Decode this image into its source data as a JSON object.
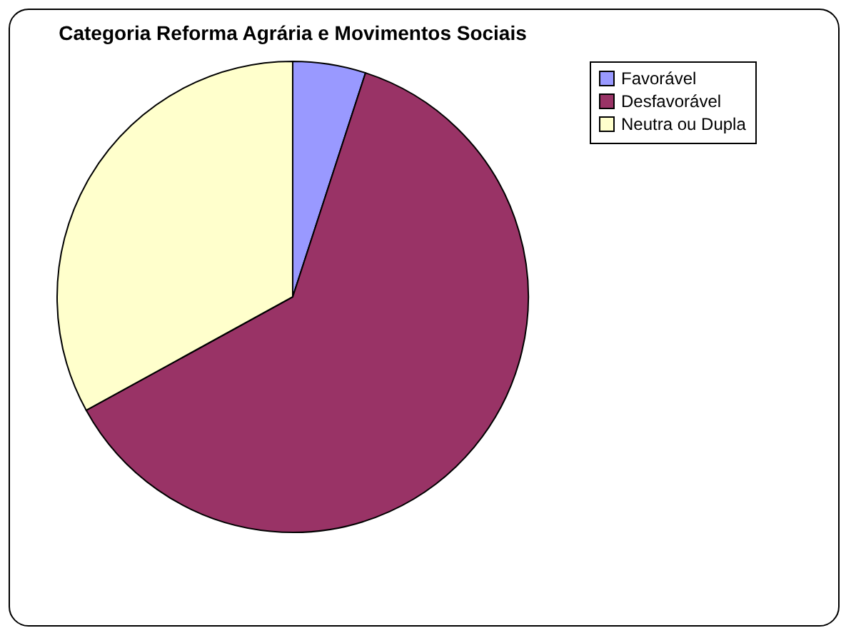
{
  "chart_data": {
    "type": "pie",
    "title": "Categoria Reforma Agrária e Movimentos Sociais",
    "categories": [
      "Favorável",
      "Desfavorável",
      "Neutra ou Dupla"
    ],
    "values": [
      5,
      62,
      33
    ],
    "colors": [
      "#9999ff",
      "#993366",
      "#ffffcc"
    ],
    "legend": "right"
  }
}
